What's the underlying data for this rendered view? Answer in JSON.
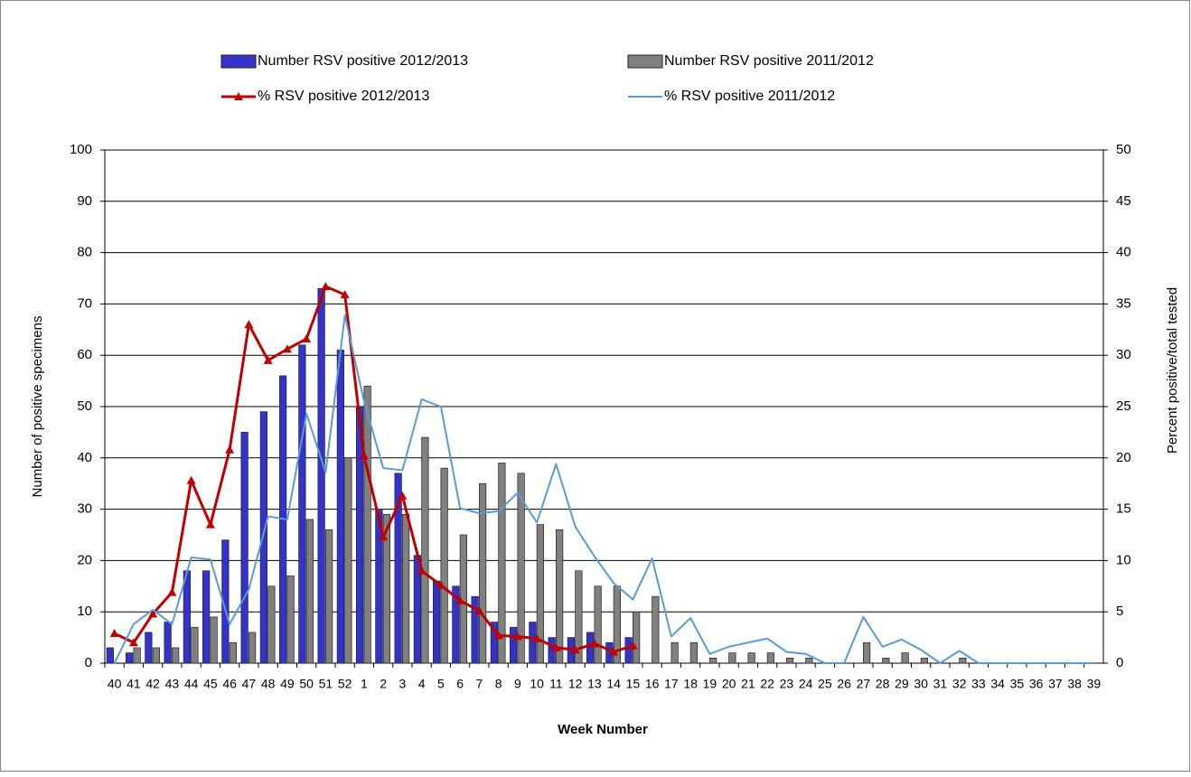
{
  "chart_data": {
    "type": "bar-line",
    "x_label": "Week Number",
    "y_label": "Number of positive specimens",
    "y2_label": "Percent positive/total tested",
    "categories": [
      "40",
      "41",
      "42",
      "43",
      "44",
      "45",
      "46",
      "47",
      "48",
      "49",
      "50",
      "51",
      "52",
      "1",
      "2",
      "3",
      "4",
      "5",
      "6",
      "7",
      "8",
      "9",
      "10",
      "11",
      "12",
      "13",
      "14",
      "15",
      "16",
      "17",
      "18",
      "19",
      "20",
      "21",
      "22",
      "23",
      "24",
      "25",
      "26",
      "27",
      "28",
      "29",
      "30",
      "31",
      "32",
      "33",
      "34",
      "35",
      "36",
      "37",
      "38",
      "39"
    ],
    "ylim": [
      0,
      100
    ],
    "yticks": [
      0,
      10,
      20,
      30,
      40,
      50,
      60,
      70,
      80,
      90,
      100
    ],
    "y2lim": [
      0,
      50
    ],
    "y2ticks": [
      0,
      5,
      10,
      15,
      20,
      25,
      30,
      35,
      40,
      45,
      50
    ],
    "grid": true,
    "series": [
      {
        "name": "Number RSV positive 2012/2013",
        "kind": "bar",
        "color": "#3333cc",
        "values": [
          3,
          2,
          6,
          8,
          18,
          18,
          24,
          45,
          49,
          56,
          62,
          73,
          61,
          50,
          30,
          37,
          21,
          16,
          15,
          13,
          8,
          7,
          8,
          5,
          5,
          6,
          4,
          5,
          null,
          null,
          null,
          null,
          null,
          null,
          null,
          null,
          null,
          null,
          null,
          null,
          null,
          null,
          null,
          null,
          null,
          null,
          null,
          null,
          null,
          null,
          null,
          null
        ]
      },
      {
        "name": "Number RSV positive 2011/2012",
        "kind": "bar",
        "color": "#808080",
        "values": [
          0,
          3,
          3,
          3,
          7,
          9,
          4,
          6,
          15,
          17,
          28,
          26,
          40,
          54,
          29,
          29,
          44,
          38,
          25,
          35,
          39,
          37,
          27,
          26,
          18,
          15,
          15,
          10,
          13,
          4,
          4,
          1,
          2,
          2,
          2,
          1,
          1,
          0,
          0,
          4,
          1,
          2,
          1,
          0,
          1,
          0,
          0,
          0,
          0,
          0,
          0,
          0
        ]
      },
      {
        "name": "% RSV positive 2012/2013",
        "kind": "line",
        "axis": "y2",
        "color": "#c00000",
        "marker": "triangle",
        "values": [
          2.9,
          2,
          4.8,
          6.9,
          17.8,
          13.5,
          20.8,
          33,
          29.5,
          30.6,
          31.6,
          36.7,
          35.9,
          20.2,
          12.3,
          16.3,
          9,
          7.6,
          6.1,
          5.1,
          2.7,
          2.6,
          2.4,
          1.5,
          1.3,
          1.9,
          1.1,
          1.7,
          null,
          null,
          null,
          null,
          null,
          null,
          null,
          null,
          null,
          null,
          null,
          null,
          null,
          null,
          null,
          null,
          null,
          null,
          null,
          null,
          null,
          null,
          null,
          null
        ]
      },
      {
        "name": "% RSV positive 2011/2012",
        "kind": "line",
        "axis": "y2",
        "color": "#5b9bd5",
        "values": [
          0,
          3.8,
          5.2,
          3.8,
          10.3,
          10.1,
          3.8,
          7.2,
          14.3,
          14,
          24.3,
          18.6,
          33.9,
          25.5,
          19,
          18.8,
          25.7,
          25,
          15.1,
          14.6,
          14.8,
          16.6,
          13.7,
          19.4,
          13.3,
          10.4,
          7.8,
          6.2,
          10.2,
          2.6,
          4.4,
          0.9,
          1.6,
          2,
          2.4,
          1.1,
          0.9,
          0,
          0,
          4.5,
          1.6,
          2.3,
          1.3,
          0,
          1.2,
          0,
          0,
          0,
          0,
          0,
          0,
          0
        ]
      }
    ]
  }
}
